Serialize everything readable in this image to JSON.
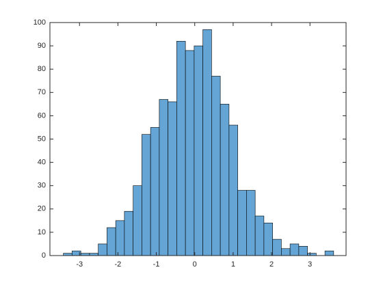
{
  "chart_data": {
    "type": "histogram",
    "bins": [
      -3.42,
      -3.193,
      -2.966,
      -2.739,
      -2.512,
      -2.285,
      -2.058,
      -1.831,
      -1.604,
      -1.377,
      -1.15,
      -0.923,
      -0.696,
      -0.469,
      -0.242,
      -0.015,
      0.212,
      0.439,
      0.666,
      0.893,
      1.12,
      1.347,
      1.574,
      1.801,
      2.028,
      2.255,
      2.482,
      2.709,
      2.936,
      3.163,
      3.39,
      3.617
    ],
    "values": [
      1,
      2,
      1,
      1,
      5,
      12,
      15,
      19,
      30,
      52,
      55,
      67,
      66,
      92,
      88,
      90,
      97,
      77,
      65,
      56,
      28,
      28,
      17,
      14,
      7,
      3,
      5,
      4,
      1,
      0,
      2
    ],
    "color": "#64a5d5",
    "xlim": [
      -3.77,
      3.94
    ],
    "xticks": [
      -3,
      -2,
      -1,
      0,
      1,
      2,
      3
    ],
    "ylim": [
      0,
      100
    ],
    "yticks": [
      0,
      10,
      20,
      30,
      40,
      50,
      60,
      70,
      80,
      90,
      100
    ]
  }
}
